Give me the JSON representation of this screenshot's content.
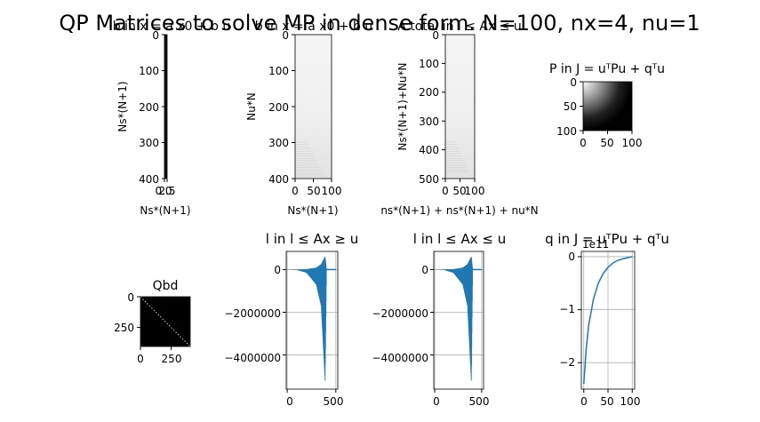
{
  "figure": {
    "title": "QP Matrices to solve MP in dense form. N=100, nx=4, nu=1"
  },
  "chart_data": [
    {
      "id": "ax1",
      "type": "heatmap",
      "title": "b in x = a x0 + b u",
      "xlabel": "Ns*(N+1)",
      "ylabel": "Ns*(N+1)",
      "xticks": [
        "0.0",
        "2.5"
      ],
      "yticks": [
        "0",
        "100",
        "200",
        "300",
        "400"
      ],
      "xlim": [
        0,
        2.5
      ],
      "ylim": [
        400,
        0
      ],
      "description_values": {
        "rows": 404,
        "cols": 1
      }
    },
    {
      "id": "ax2",
      "type": "heatmap",
      "title": "b in x = a x0 + b u",
      "xlabel": "Ns*(N+1)",
      "ylabel": "Nu*N",
      "xticks": [
        "0",
        "50",
        "100"
      ],
      "yticks": [
        "0",
        "100",
        "200",
        "300",
        "400"
      ],
      "xlim": [
        0,
        100
      ],
      "ylim": [
        400,
        0
      ]
    },
    {
      "id": "ax3",
      "type": "heatmap",
      "title": "A total in l ≤ Ax ≤ u",
      "xlabel": "ns*(N+1) + ns*(N+1) + nu*N",
      "ylabel": "Ns*(N+1)+Nu*N",
      "xticks": [
        "0",
        "50",
        "100"
      ],
      "yticks": [
        "0",
        "100",
        "200",
        "300",
        "400",
        "500"
      ],
      "xlim": [
        0,
        100
      ],
      "ylim": [
        500,
        0
      ]
    },
    {
      "id": "ax4",
      "type": "heatmap",
      "title": "P in J = uᵀPu + qᵀu",
      "xticks": [
        "0",
        "50",
        "100"
      ],
      "yticks": [
        "0",
        "50",
        "100"
      ],
      "xlim": [
        0,
        100
      ],
      "ylim": [
        100,
        0
      ]
    },
    {
      "id": "ax5",
      "type": "heatmap",
      "title": "Qbd",
      "xticks": [
        "0",
        "250"
      ],
      "yticks": [
        "0",
        "250"
      ],
      "xlim": [
        0,
        404
      ],
      "ylim": [
        404,
        0
      ]
    },
    {
      "id": "ax6",
      "type": "line",
      "title": "l in  l ≤ Ax ≥ u",
      "xticks": [
        "0",
        "500"
      ],
      "yticks": [
        "0",
        "−2000000",
        "−4000000"
      ],
      "xlim": [
        -10,
        520
      ],
      "ylim": [
        -5600000,
        850000
      ],
      "grid": true,
      "series": [
        {
          "description": "oscillating envelope growing to about -5.2e6 near x≈400, flat at 0 afterwards",
          "x": [
            0,
            100,
            200,
            300,
            350,
            390,
            404,
            500
          ],
          "y_low": [
            0,
            -20000,
            -150000,
            -700000,
            -1700000,
            -5200000,
            0,
            0
          ],
          "y_high": [
            0,
            5000,
            20000,
            90000,
            250000,
            600000,
            0,
            0
          ]
        }
      ]
    },
    {
      "id": "ax7",
      "type": "line",
      "title": "l in  l ≤ Ax ≤ u",
      "xticks": [
        "0",
        "500"
      ],
      "yticks": [
        "0",
        "−2000000",
        "−4000000"
      ],
      "xlim": [
        -10,
        520
      ],
      "ylim": [
        -5600000,
        850000
      ],
      "grid": true,
      "series": [
        {
          "description": "oscillating envelope growing to about -5.2e6 near x≈400, flat at 0 afterwards",
          "x": [
            0,
            100,
            200,
            300,
            350,
            390,
            404,
            500
          ],
          "y_low": [
            0,
            -20000,
            -150000,
            -700000,
            -1700000,
            -5200000,
            0,
            0
          ],
          "y_high": [
            0,
            5000,
            20000,
            90000,
            250000,
            600000,
            0,
            0
          ]
        }
      ]
    },
    {
      "id": "ax8",
      "type": "line",
      "title": "q in J = uᵀPu + qᵀu",
      "offset_text": "1e11",
      "xticks": [
        "0",
        "50",
        "100"
      ],
      "yticks": [
        "0",
        "−1",
        "−2"
      ],
      "xlim": [
        -5,
        105
      ],
      "ylim": [
        -2.5,
        0.1
      ],
      "grid": true,
      "series": [
        {
          "x": [
            0,
            5,
            10,
            20,
            30,
            40,
            50,
            60,
            70,
            80,
            90,
            100
          ],
          "y": [
            -2.4,
            -1.75,
            -1.3,
            -0.8,
            -0.5,
            -0.32,
            -0.2,
            -0.12,
            -0.07,
            -0.04,
            -0.02,
            0.0
          ]
        }
      ]
    }
  ],
  "colors": {
    "line": "#1f77b4",
    "grid": "#b0b0b0",
    "dark": "#000000"
  }
}
